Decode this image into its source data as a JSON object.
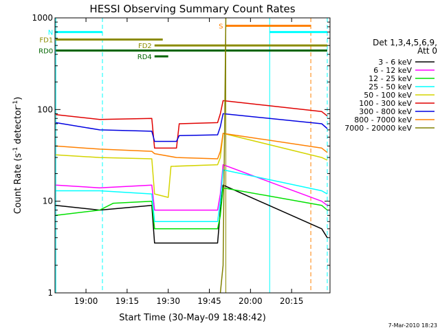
{
  "chart_data": {
    "type": "line",
    "title": "HESSI Observing Summary Count Rates",
    "xlabel": "Start Time (30-May-09 18:48:42)",
    "ylabel_prefix": "Count Rate (s",
    "ylabel_sup1": "-1",
    "ylabel_mid": " detector",
    "ylabel_sup2": "-1",
    "ylabel_suffix": ")",
    "y_scale": "log",
    "ylim": [
      1,
      1000
    ],
    "xlim": [
      "18:48:42",
      "20:29:00"
    ],
    "x_ticks": [
      "19:00",
      "19:15",
      "19:30",
      "19:45",
      "20:00",
      "20:15"
    ],
    "y_ticks": [
      "1",
      "10",
      "100",
      "1000"
    ],
    "legend_header": [
      "Det 1,3,4,5,6,9,",
      "Att 0"
    ],
    "legend_position": "right",
    "series": [
      {
        "name": "3 - 6 keV",
        "color": "#000000",
        "values": [
          [
            "18:49",
            9
          ],
          [
            "19:05",
            8
          ],
          [
            "19:24",
            9
          ],
          [
            "19:25",
            3.5
          ],
          [
            "19:48",
            3.5
          ],
          [
            "19:49",
            8
          ],
          [
            "19:50",
            15
          ],
          [
            "20:26",
            5
          ],
          [
            "20:28",
            4
          ]
        ]
      },
      {
        "name": "6 - 12 keV",
        "color": "#ff00ff",
        "values": [
          [
            "18:49",
            15
          ],
          [
            "19:05",
            14
          ],
          [
            "19:24",
            15
          ],
          [
            "19:25",
            8
          ],
          [
            "19:48",
            8
          ],
          [
            "19:49",
            12
          ],
          [
            "19:50",
            25
          ],
          [
            "20:26",
            10
          ],
          [
            "20:28",
            9
          ]
        ]
      },
      {
        "name": "12 - 25 keV",
        "color": "#00e000",
        "values": [
          [
            "18:49",
            7
          ],
          [
            "19:05",
            8
          ],
          [
            "19:10",
            9.5
          ],
          [
            "19:24",
            10
          ],
          [
            "19:25",
            5
          ],
          [
            "19:48",
            5
          ],
          [
            "19:49",
            7
          ],
          [
            "19:50",
            14
          ],
          [
            "20:26",
            9
          ],
          [
            "20:28",
            8
          ]
        ]
      },
      {
        "name": "25 - 50 keV",
        "color": "#00ffff",
        "values": [
          [
            "18:49",
            13
          ],
          [
            "19:05",
            13
          ],
          [
            "19:24",
            12
          ],
          [
            "19:25",
            6
          ],
          [
            "19:48",
            6
          ],
          [
            "19:49",
            10
          ],
          [
            "19:50",
            22
          ],
          [
            "20:26",
            13
          ],
          [
            "20:28",
            12
          ]
        ]
      },
      {
        "name": "50 - 100 keV",
        "color": "#d4d400",
        "values": [
          [
            "18:49",
            32
          ],
          [
            "19:05",
            30
          ],
          [
            "19:24",
            29
          ],
          [
            "19:25",
            12
          ],
          [
            "19:30",
            11
          ],
          [
            "19:31",
            24
          ],
          [
            "19:48",
            25
          ],
          [
            "19:49",
            30
          ],
          [
            "19:50",
            55
          ],
          [
            "20:26",
            30
          ],
          [
            "20:28",
            28
          ]
        ]
      },
      {
        "name": "100 - 300 keV",
        "color": "#e00000",
        "values": [
          [
            "18:49",
            88
          ],
          [
            "19:05",
            78
          ],
          [
            "19:24",
            80
          ],
          [
            "19:25",
            38
          ],
          [
            "19:33",
            38
          ],
          [
            "19:34",
            70
          ],
          [
            "19:48",
            72
          ],
          [
            "19:49",
            90
          ],
          [
            "19:50",
            125
          ],
          [
            "20:26",
            95
          ],
          [
            "20:28",
            85
          ]
        ]
      },
      {
        "name": "300 - 800 keV",
        "color": "#0000e0",
        "values": [
          [
            "18:49",
            72
          ],
          [
            "19:05",
            60
          ],
          [
            "19:24",
            58
          ],
          [
            "19:25",
            45
          ],
          [
            "19:33",
            45
          ],
          [
            "19:34",
            52
          ],
          [
            "19:48",
            53
          ],
          [
            "19:49",
            65
          ],
          [
            "19:50",
            90
          ],
          [
            "20:26",
            70
          ],
          [
            "20:28",
            62
          ]
        ]
      },
      {
        "name": "800 - 7000 keV",
        "color": "#ff8000",
        "values": [
          [
            "18:49",
            40
          ],
          [
            "19:05",
            37
          ],
          [
            "19:24",
            35
          ],
          [
            "19:25",
            33
          ],
          [
            "19:33",
            30
          ],
          [
            "19:48",
            29
          ],
          [
            "19:49",
            35
          ],
          [
            "19:50",
            55
          ],
          [
            "20:26",
            38
          ],
          [
            "20:28",
            34
          ]
        ]
      },
      {
        "name": "7000 - 20000 keV",
        "color": "#808000",
        "values": [
          [
            "19:49",
            1
          ],
          [
            "19:50",
            2
          ],
          [
            "19:51",
            1000
          ]
        ]
      }
    ],
    "flags": [
      {
        "label": "N",
        "color": "#00ffff",
        "start": "18:49",
        "end": "19:06",
        "level": 700
      },
      {
        "label": "",
        "color": "#00ffff",
        "start": "20:07",
        "end": "20:28",
        "level": 700
      },
      {
        "label": "S",
        "color": "#ff8000",
        "start": "19:51",
        "end": "20:22",
        "level": 820
      },
      {
        "label": "FD1",
        "color": "#8b8b00",
        "start": "18:49",
        "end": "19:28",
        "level": 580
      },
      {
        "label": "FD2",
        "color": "#8b8b00",
        "start": "19:25",
        "end": "20:28",
        "level": 500
      },
      {
        "label": "RD0",
        "color": "#006400",
        "start": "18:49",
        "end": "20:28",
        "level": 440
      },
      {
        "label": "RD4",
        "color": "#006400",
        "start": "19:25",
        "end": "19:30",
        "level": 380
      }
    ],
    "vlines": [
      {
        "time": "18:49",
        "color": "#00ffff",
        "dashed": false
      },
      {
        "time": "19:06",
        "color": "#00ffff",
        "dashed": true
      },
      {
        "time": "19:51",
        "color": "#8b8b00",
        "dashed": false
      },
      {
        "time": "20:07",
        "color": "#00ffff",
        "dashed": false
      },
      {
        "time": "20:22",
        "color": "#ff8000",
        "dashed": true
      },
      {
        "time": "20:28",
        "color": "#00ffff",
        "dashed": true
      }
    ],
    "footer_date": "7-Mar-2010 18:23"
  }
}
